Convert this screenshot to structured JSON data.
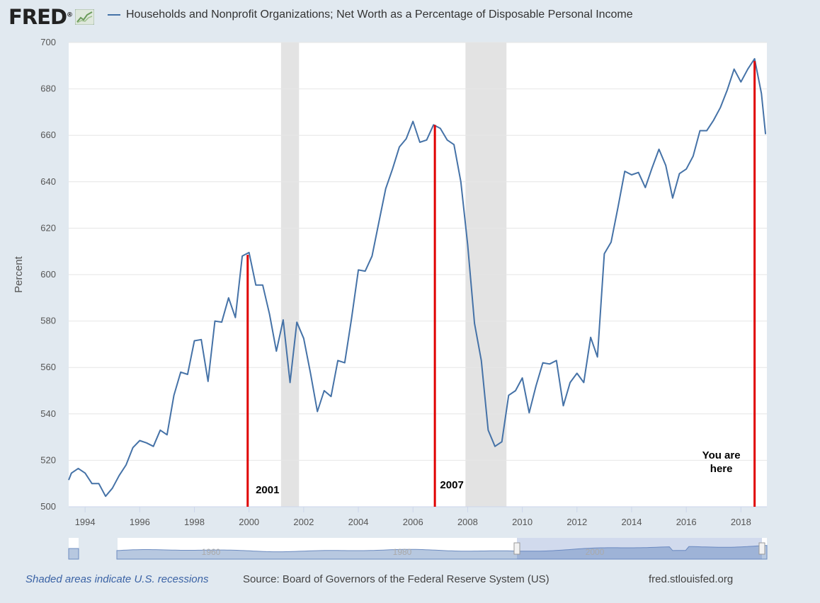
{
  "header": {
    "logo_text": "FRED",
    "logo_mark": "®",
    "legend_label": "Households and Nonprofit Organizations; Net Worth as a Percentage of Disposable Personal Income"
  },
  "footer": {
    "recession_note": "Shaded areas indicate U.S. recessions",
    "source": "Source: Board of Governors of the Federal Reserve System (US)",
    "site": "fred.stlouisfed.org"
  },
  "colors": {
    "series": "#4572a7",
    "recession": "#e3e3e3",
    "annotation": "#e00000"
  },
  "chart_data": {
    "type": "line",
    "title": "Households and Nonprofit Organizations; Net Worth as a Percentage of Disposable Personal Income",
    "ylabel": "Percent",
    "xlabel": "",
    "ylim": [
      500,
      700
    ],
    "xlim": [
      1993.4,
      2018.95
    ],
    "yticks": [
      500,
      520,
      540,
      560,
      580,
      600,
      620,
      640,
      660,
      680,
      700
    ],
    "xticks": [
      1994,
      1996,
      1998,
      2000,
      2002,
      2004,
      2006,
      2008,
      2010,
      2012,
      2014,
      2016,
      2018
    ],
    "recessions": [
      [
        2001.17,
        2001.83
      ],
      [
        2007.92,
        2009.42
      ]
    ],
    "series": [
      {
        "name": "Net Worth as % of Disposable Personal Income",
        "x": [
          1993.4,
          1993.5,
          1993.75,
          1994.0,
          1994.25,
          1994.5,
          1994.75,
          1995.0,
          1995.25,
          1995.5,
          1995.75,
          1996.0,
          1996.25,
          1996.5,
          1996.75,
          1997.0,
          1997.25,
          1997.5,
          1997.75,
          1998.0,
          1998.25,
          1998.5,
          1998.75,
          1999.0,
          1999.25,
          1999.5,
          1999.75,
          2000.0,
          2000.25,
          2000.5,
          2000.75,
          2001.0,
          2001.25,
          2001.5,
          2001.75,
          2002.0,
          2002.25,
          2002.5,
          2002.75,
          2003.0,
          2003.25,
          2003.5,
          2003.75,
          2004.0,
          2004.25,
          2004.5,
          2004.75,
          2005.0,
          2005.25,
          2005.5,
          2005.75,
          2006.0,
          2006.25,
          2006.5,
          2006.75,
          2007.0,
          2007.25,
          2007.5,
          2007.75,
          2008.0,
          2008.25,
          2008.5,
          2008.75,
          2009.0,
          2009.25,
          2009.5,
          2009.75,
          2010.0,
          2010.25,
          2010.5,
          2010.75,
          2011.0,
          2011.25,
          2011.5,
          2011.75,
          2012.0,
          2012.25,
          2012.5,
          2012.75,
          2013.0,
          2013.25,
          2013.5,
          2013.75,
          2014.0,
          2014.25,
          2014.5,
          2014.75,
          2015.0,
          2015.25,
          2015.5,
          2015.75,
          2016.0,
          2016.25,
          2016.5,
          2016.75,
          2017.0,
          2017.25,
          2017.5,
          2017.75,
          2018.0,
          2018.25,
          2018.5,
          2018.75,
          2018.9
        ],
        "values": [
          511.5,
          514.5,
          516.5,
          514.5,
          510,
          510,
          504.5,
          508,
          513.5,
          518,
          525.5,
          528.5,
          527.5,
          526,
          533,
          531,
          548,
          558,
          557,
          571.5,
          572,
          554,
          580,
          579.5,
          590,
          581.5,
          608,
          609.5,
          595.5,
          595.5,
          583,
          567,
          580.5,
          553.5,
          579.5,
          572.5,
          557.5,
          541,
          550,
          547.5,
          563,
          562,
          581,
          602,
          601.5,
          608,
          622.5,
          637,
          645.5,
          655,
          658.5,
          666,
          657,
          658,
          664.5,
          663,
          658,
          656,
          640,
          613,
          579,
          563,
          533,
          526,
          528,
          548,
          550,
          555.5,
          540.5,
          552,
          562,
          561.5,
          563,
          543.5,
          553.5,
          557.5,
          553.5,
          573,
          564.5,
          609,
          614,
          629,
          644.5,
          643,
          644,
          637.5,
          646,
          654,
          647,
          633,
          643.5,
          645.5,
          651,
          662,
          662,
          666.5,
          672,
          679.5,
          688.5,
          683,
          688.5,
          693,
          678,
          660.5
        ]
      }
    ],
    "annotations": [
      {
        "label": "2001",
        "x": 1999.95,
        "y_from": 500,
        "y_to": 608.5
      },
      {
        "label": "2007",
        "x": 2006.8,
        "y_from": 500,
        "y_to": 664.5
      },
      {
        "label": "You are here",
        "line1": "You are",
        "line2": "here",
        "x": 2018.5,
        "y_from": 500,
        "y_to": 692
      }
    ],
    "range_selector": {
      "tick_labels": [
        "1960",
        "1980",
        "2000"
      ]
    }
  }
}
